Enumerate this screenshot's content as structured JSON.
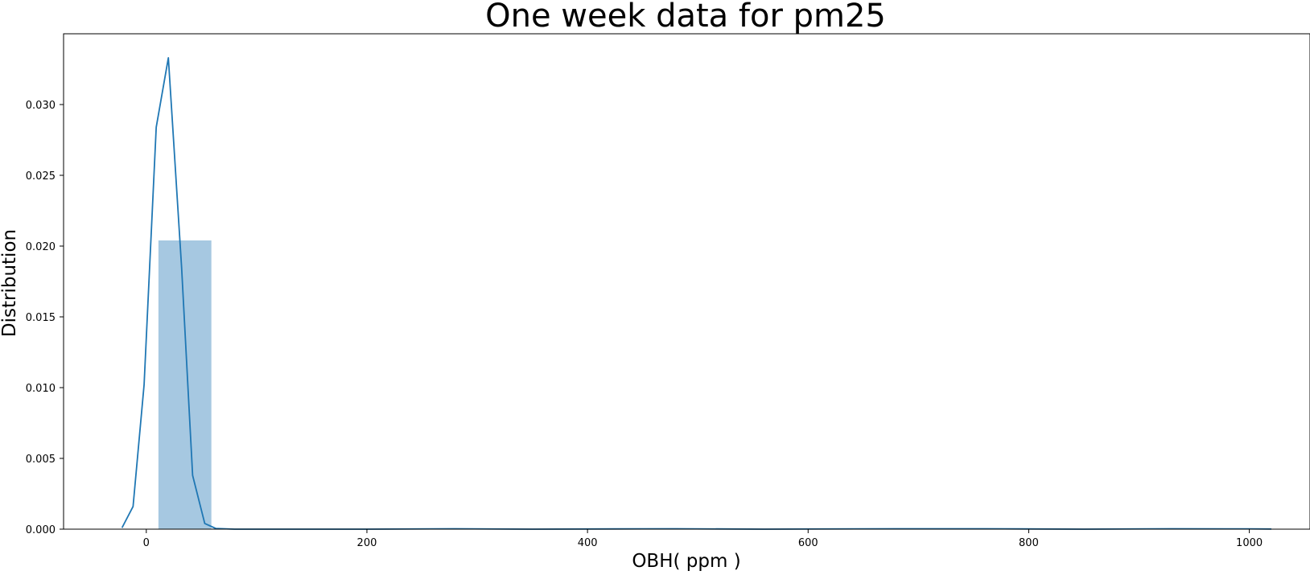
{
  "chart_data": {
    "type": "bar",
    "title": "One week data for pm25",
    "xlabel": "OBH( ppm )",
    "ylabel": "Distribution",
    "xlim": [
      -75,
      1055
    ],
    "ylim": [
      0,
      0.035
    ],
    "xticks": [
      0,
      200,
      400,
      600,
      800,
      1000
    ],
    "xtick_labels": [
      "0",
      "200",
      "400",
      "600",
      "800",
      "1000"
    ],
    "yticks": [
      0,
      0.005,
      0.01,
      0.015,
      0.02,
      0.025,
      0.03
    ],
    "ytick_labels": [
      "0.000",
      "0.005",
      "0.010",
      "0.015",
      "0.020",
      "0.025",
      "0.030"
    ],
    "grid": false,
    "histogram": {
      "bins": [
        {
          "x0": 11,
          "x1": 59,
          "value": 0.0204
        }
      ],
      "color": "#a6c8e1"
    },
    "kde": {
      "color": "#1f77b4",
      "x": [
        -22,
        -12,
        -2,
        9,
        20,
        32,
        42,
        53,
        63,
        80,
        120,
        200,
        280,
        350,
        480,
        560,
        680,
        760,
        850,
        930,
        1000,
        1020
      ],
      "y": [
        0.0001,
        0.0016,
        0.0102,
        0.0284,
        0.0333,
        0.0185,
        0.0038,
        0.0004,
        5e-05,
        0.0,
        0.0,
        0.0,
        3e-05,
        0.0,
        3e-05,
        0.0,
        3e-05,
        3e-05,
        0.0,
        3e-05,
        2e-05,
        1e-05
      ]
    }
  }
}
